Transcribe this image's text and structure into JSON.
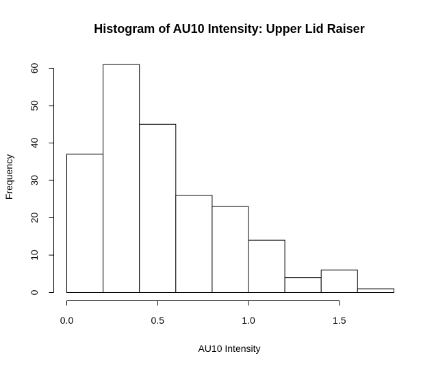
{
  "chart_data": {
    "type": "histogram",
    "title": "Histogram of AU10 Intensity: Upper Lid Raiser",
    "xlabel": "AU10 Intensity",
    "ylabel": "Frequency",
    "bins": [
      {
        "x0": 0.0,
        "x1": 0.2,
        "count": 37
      },
      {
        "x0": 0.2,
        "x1": 0.4,
        "count": 61
      },
      {
        "x0": 0.4,
        "x1": 0.6,
        "count": 45
      },
      {
        "x0": 0.6,
        "x1": 0.8,
        "count": 26
      },
      {
        "x0": 0.8,
        "x1": 1.0,
        "count": 23
      },
      {
        "x0": 1.0,
        "x1": 1.2,
        "count": 14
      },
      {
        "x0": 1.2,
        "x1": 1.4,
        "count": 4
      },
      {
        "x0": 1.4,
        "x1": 1.6,
        "count": 6
      },
      {
        "x0": 1.6,
        "x1": 1.8,
        "count": 1
      }
    ],
    "xlim": [
      0,
      1.8
    ],
    "ylim": [
      0,
      60
    ],
    "x_ticks": [
      0.0,
      0.5,
      1.0,
      1.5
    ],
    "x_tick_labels": [
      "0.0",
      "0.5",
      "1.0",
      "1.5"
    ],
    "y_ticks": [
      0,
      10,
      20,
      30,
      40,
      50,
      60
    ],
    "y_tick_labels": [
      "0",
      "10",
      "20",
      "30",
      "40",
      "50",
      "60"
    ],
    "bar_fill": "#ffffff",
    "bar_stroke": "#000000",
    "grid": false,
    "legend": "none"
  }
}
